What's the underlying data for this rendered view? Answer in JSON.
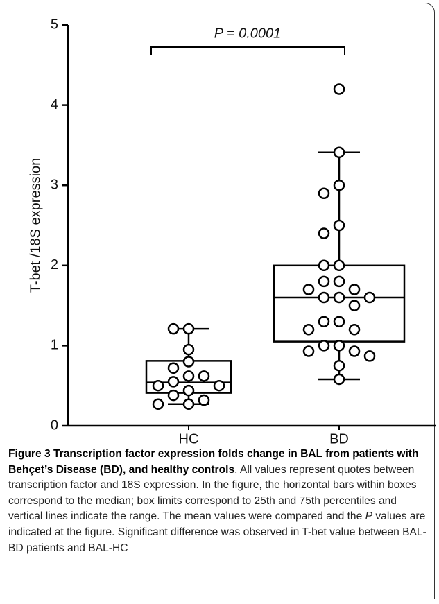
{
  "chart_data": {
    "type": "box",
    "ylabel": "T-bet /18S expression",
    "categories": [
      "HC",
      "BD"
    ],
    "boxes": [
      {
        "min": 0.27,
        "q1": 0.41,
        "median": 0.54,
        "q3": 0.81,
        "max": 1.21
      },
      {
        "min": 0.58,
        "q1": 1.05,
        "median": 1.6,
        "q3": 2.0,
        "max": 3.41
      }
    ],
    "points": [
      [
        1.21,
        1.21,
        0.95,
        0.8,
        0.72,
        0.62,
        0.62,
        0.55,
        0.5,
        0.5,
        0.44,
        0.38,
        0.32,
        0.27,
        0.27
      ],
      [
        4.2,
        3.41,
        3.0,
        2.9,
        2.5,
        2.4,
        2.0,
        2.0,
        1.8,
        1.8,
        1.7,
        1.7,
        1.6,
        1.6,
        1.6,
        1.5,
        1.3,
        1.3,
        1.2,
        1.2,
        1.0,
        1.0,
        0.93,
        0.93,
        0.87,
        0.75,
        0.58
      ]
    ],
    "annotation": "P = 0.0001",
    "ylim": [
      0,
      5
    ],
    "yticks": [
      0,
      1,
      2,
      3,
      4,
      5
    ],
    "color": "#000000"
  },
  "caption": {
    "title": "Figure 3 Transcription factor expression folds change in BAL from patients with Behçet’s Disease (BD), and healthy controls",
    "body": [
      ". All values represent quotes between transcription factor and 18S expression. In the figure, the horizontal bars within boxes correspond to the median; box limits correspond to 25th and 75th percentiles and vertical lines indicate the range. The mean values were compared and the ",
      "P",
      " values are indicated at the figure. Significant difference was observed in T-bet value between BAL-BD patients and BAL-HC"
    ]
  }
}
